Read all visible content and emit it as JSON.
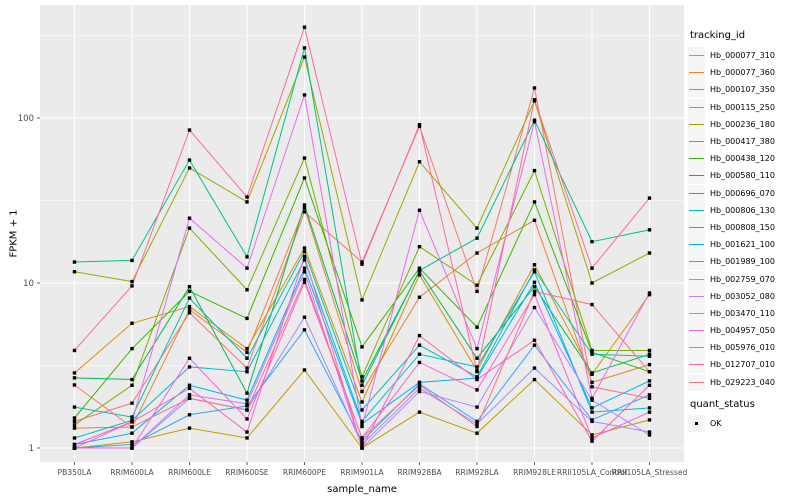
{
  "figure": {
    "y_axis_title": "FPKM + 1",
    "x_axis_title": "sample_name",
    "colors": {
      "panel_bg": "#EBEBEB",
      "grid": "#FFFFFF",
      "tick_text": "#4D4D4D",
      "tick_mark": "#333333",
      "point": "#000000"
    }
  },
  "legend": {
    "tracking_title": "tracking_id",
    "quant_title": "quant_status",
    "quant_label": "OK"
  },
  "chart_data": {
    "type": "line",
    "title": "",
    "xlabel": "sample_name",
    "ylabel": "FPKM + 1",
    "y_scale": "log10",
    "grid": true,
    "legend_position": "right",
    "y_ticks": [
      1,
      10,
      100
    ],
    "y_minor_ticks": [
      3.162,
      31.62,
      316.2
    ],
    "ylim": [
      0.82,
      470
    ],
    "categories": [
      "PB350LA",
      "RRIM600LA",
      "RRIM600LE",
      "RRIM600SE",
      "RRIM600PE",
      "RRIM901LA",
      "RRIM928BA",
      "RRIM928LA",
      "RRIM928LE",
      "RRII105LA_Control",
      "RRII105LA_Stressed"
    ],
    "series": [
      {
        "name": "Hb_000077_310",
        "color": "#F8766D",
        "values": [
          1.45,
          1.87,
          6.6,
          3.05,
          27.0,
          13.4,
          89.0,
          8.9,
          152.0,
          2.35,
          2.0
        ]
      },
      {
        "name": "Hb_000077_360",
        "color": "#EA8331",
        "values": [
          1.32,
          1.34,
          6.9,
          3.8,
          28.5,
          2.2,
          8.2,
          15.2,
          24.0,
          2.5,
          3.2
        ]
      },
      {
        "name": "Hb_000107_350",
        "color": "#D89000",
        "values": [
          2.85,
          5.7,
          7.2,
          4.0,
          16.3,
          1.9,
          11.2,
          2.95,
          12.9,
          2.8,
          8.5
        ]
      },
      {
        "name": "Hb_000115_250",
        "color": "#C09B00",
        "values": [
          1.0,
          1.09,
          1.32,
          1.15,
          2.97,
          1.0,
          1.65,
          1.23,
          2.6,
          1.2,
          1.48
        ]
      },
      {
        "name": "Hb_000236_180",
        "color": "#A3A500",
        "values": [
          11.7,
          10.2,
          49.8,
          31.0,
          234.0,
          7.9,
          54.3,
          21.5,
          127.0,
          10.0,
          15.2
        ]
      },
      {
        "name": "Hb_000417_380",
        "color": "#7CAE00",
        "values": [
          1.38,
          2.4,
          21.5,
          9.1,
          57.2,
          2.7,
          16.6,
          9.7,
          48.0,
          3.9,
          3.9
        ]
      },
      {
        "name": "Hb_000438_120",
        "color": "#39B600",
        "values": [
          1.52,
          4.0,
          8.9,
          6.1,
          43.3,
          4.1,
          12.3,
          5.4,
          31.0,
          3.8,
          2.9
        ]
      },
      {
        "name": "Hb_000580_110",
        "color": "#00BB4E",
        "values": [
          2.66,
          2.6,
          9.5,
          2.15,
          29.7,
          2.55,
          11.8,
          3.5,
          9.5,
          2.85,
          3.7
        ]
      },
      {
        "name": "Hb_000696_070",
        "color": "#00C087",
        "values": [
          13.4,
          13.7,
          55.6,
          14.4,
          266.0,
          2.4,
          11.9,
          18.7,
          97.0,
          17.8,
          21.0
        ]
      },
      {
        "name": "Hb_000806_130",
        "color": "#00C0B8",
        "values": [
          1.77,
          1.54,
          8.1,
          3.5,
          15.5,
          1.7,
          4.2,
          2.7,
          12.0,
          3.7,
          3.6
        ]
      },
      {
        "name": "Hb_000808_150",
        "color": "#00BCD8",
        "values": [
          1.15,
          1.47,
          3.1,
          2.9,
          13.8,
          1.45,
          3.7,
          3.1,
          11.7,
          1.65,
          1.75
        ]
      },
      {
        "name": "Hb_001621_100",
        "color": "#00B0F6",
        "values": [
          1.05,
          1.23,
          2.4,
          1.95,
          12.3,
          1.4,
          2.5,
          2.65,
          10.1,
          1.75,
          2.55
        ]
      },
      {
        "name": "Hb_001989_100",
        "color": "#35A2FF",
        "values": [
          1.0,
          1.05,
          1.59,
          1.8,
          5.2,
          1.1,
          2.45,
          1.45,
          4.2,
          1.48,
          2.1
        ]
      },
      {
        "name": "Hb_002759_070",
        "color": "#9590FF",
        "values": [
          1.0,
          1.0,
          2.0,
          1.7,
          6.2,
          1.05,
          2.3,
          1.4,
          3.05,
          1.45,
          1.25
        ]
      },
      {
        "name": "Hb_003052_080",
        "color": "#C77CFF",
        "values": [
          1.0,
          1.0,
          2.1,
          1.85,
          11.7,
          1.0,
          2.2,
          1.77,
          7.1,
          1.95,
          1.2
        ]
      },
      {
        "name": "Hb_003470_110",
        "color": "#E76BF3",
        "values": [
          1.0,
          1.44,
          24.7,
          12.3,
          138.0,
          1.35,
          27.6,
          4.0,
          95.0,
          2.0,
          8.7
        ]
      },
      {
        "name": "Hb_004957_050",
        "color": "#FA62DB",
        "values": [
          1.0,
          1.0,
          3.5,
          1.5,
          10.1,
          1.15,
          3.3,
          2.25,
          8.5,
          1.15,
          1.65
        ]
      },
      {
        "name": "Hb_005976_010",
        "color": "#FF62BC",
        "values": [
          1.05,
          1.44,
          2.3,
          1.25,
          14.5,
          1.0,
          4.8,
          2.6,
          4.5,
          1.1,
          2.4
        ]
      },
      {
        "name": "Hb_012707_010",
        "color": "#FF6A98",
        "values": [
          3.9,
          9.6,
          84.5,
          33.2,
          355.0,
          13.0,
          91.0,
          2.9,
          129.0,
          12.3,
          32.7
        ]
      },
      {
        "name": "Hb_029223_040",
        "color": "#FC717F",
        "values": [
          2.41,
          1.34,
          2.0,
          1.7,
          10.5,
          1.15,
          2.4,
          1.35,
          8.9,
          7.4,
          2.9
        ]
      }
    ]
  }
}
